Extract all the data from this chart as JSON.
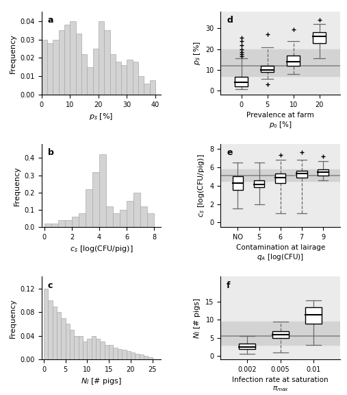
{
  "hist_a": {
    "label": "a",
    "xlabel": "$p_s$ [%]",
    "ylabel": "Frequency",
    "xlim": [
      0,
      42
    ],
    "ylim": [
      0,
      0.045
    ],
    "yticks": [
      0.0,
      0.01,
      0.02,
      0.03,
      0.04
    ],
    "xticks": [
      0,
      10,
      20,
      30,
      40
    ],
    "bar_edges": [
      0,
      2,
      4,
      6,
      8,
      10,
      12,
      14,
      16,
      18,
      20,
      22,
      24,
      26,
      28,
      30,
      32,
      34,
      36,
      38,
      40
    ],
    "bar_heights": [
      0.03,
      0.028,
      0.03,
      0.035,
      0.038,
      0.04,
      0.033,
      0.022,
      0.015,
      0.025,
      0.04,
      0.035,
      0.022,
      0.018,
      0.016,
      0.019,
      0.018,
      0.01,
      0.006,
      0.008
    ],
    "bar_color": "#d3d3d3",
    "bar_edgecolor": "#aaaaaa"
  },
  "hist_b": {
    "label": "b",
    "xlabel": "$c_s$ [log(CFU/pig)]",
    "ylabel": "Frequency",
    "xlim": [
      -0.2,
      8.5
    ],
    "ylim": [
      0,
      0.48
    ],
    "yticks": [
      0.0,
      0.1,
      0.2,
      0.3,
      0.4
    ],
    "xticks": [
      0,
      2,
      4,
      6,
      8
    ],
    "bar_edges": [
      0.0,
      0.5,
      1.0,
      1.5,
      2.0,
      2.5,
      3.0,
      3.5,
      4.0,
      4.5,
      5.0,
      5.5,
      6.0,
      6.5,
      7.0,
      7.5,
      8.0
    ],
    "bar_heights": [
      0.02,
      0.02,
      0.04,
      0.04,
      0.06,
      0.08,
      0.22,
      0.32,
      0.42,
      0.12,
      0.08,
      0.1,
      0.15,
      0.2,
      0.12,
      0.08
    ],
    "bar_color": "#d3d3d3",
    "bar_edgecolor": "#aaaaaa"
  },
  "hist_c": {
    "label": "c",
    "xlabel": "$N_I$ [# pigs]",
    "ylabel": "Frequency",
    "xlim": [
      -0.5,
      27
    ],
    "ylim": [
      0,
      0.14
    ],
    "yticks": [
      0.0,
      0.04,
      0.08,
      0.12
    ],
    "xticks": [
      0,
      5,
      10,
      15,
      20,
      25
    ],
    "bar_edges": [
      0,
      1,
      2,
      3,
      4,
      5,
      6,
      7,
      8,
      9,
      10,
      11,
      12,
      13,
      14,
      15,
      16,
      17,
      18,
      19,
      20,
      21,
      22,
      23,
      24,
      25
    ],
    "bar_heights": [
      0.12,
      0.1,
      0.09,
      0.08,
      0.07,
      0.06,
      0.05,
      0.04,
      0.04,
      0.03,
      0.035,
      0.04,
      0.035,
      0.03,
      0.025,
      0.025,
      0.02,
      0.018,
      0.016,
      0.014,
      0.012,
      0.01,
      0.008,
      0.006,
      0.004
    ],
    "bar_color": "#d3d3d3",
    "bar_edgecolor": "#aaaaaa"
  },
  "box_d": {
    "label": "d",
    "ylabel": "$p_s$ [%]",
    "xlabel": "Prevalence at farm\n$p_0$ [%]",
    "xlabels": [
      "0",
      "5",
      "10",
      "20"
    ],
    "ylim": [
      -2,
      38
    ],
    "yticks": [
      0,
      10,
      20,
      30
    ],
    "boxes": [
      {
        "q1": 2.0,
        "med": 4.0,
        "q3": 6.5,
        "whislo": 0.5,
        "whishi": 15.5,
        "fliers_up": [
          16.5,
          17.5,
          18.5,
          20.0,
          22.0,
          24.0,
          25.5
        ],
        "fliers_down": [],
        "dashed": false
      },
      {
        "q1": 9.0,
        "med": 10.0,
        "q3": 12.0,
        "whislo": 5.5,
        "whishi": 21.0,
        "fliers_up": [
          27.0
        ],
        "fliers_down": [
          3.0
        ],
        "dashed": true
      },
      {
        "q1": 12.0,
        "med": 14.0,
        "q3": 17.0,
        "whislo": 8.0,
        "whishi": 24.0,
        "fliers_up": [
          29.5
        ],
        "fliers_down": [],
        "dashed": true
      },
      {
        "q1": 23.0,
        "med": 26.0,
        "q3": 28.0,
        "whislo": 15.5,
        "whishi": 32.0,
        "fliers_up": [
          34.0
        ],
        "fliers_down": [],
        "dashed": false
      }
    ],
    "ref_band_ymin": 7.0,
    "ref_band_ymax": 20.0,
    "ref_line_y": 12.0
  },
  "box_e": {
    "label": "e",
    "ylabel": "$c_s$ [log(CFU/pig)]",
    "xlabel": "Contamination at lairage\n$q_A$ [log(CFU)]",
    "xlabels": [
      "NO",
      "5",
      "6",
      "7",
      "9"
    ],
    "ylim": [
      -0.5,
      8.5
    ],
    "yticks": [
      0,
      2,
      4,
      6,
      8
    ],
    "boxes": [
      {
        "q1": 3.5,
        "med": 4.3,
        "q3": 5.0,
        "whislo": 1.5,
        "whishi": 6.5,
        "fliers_up": [],
        "fliers_down": [],
        "dashed": false
      },
      {
        "q1": 3.8,
        "med": 4.1,
        "q3": 4.6,
        "whislo": 2.0,
        "whishi": 6.5,
        "fliers_up": [],
        "fliers_down": [],
        "dashed": false
      },
      {
        "q1": 4.3,
        "med": 4.9,
        "q3": 5.3,
        "whislo": 1.0,
        "whishi": 6.8,
        "fliers_up": [
          7.3
        ],
        "fliers_down": [],
        "dashed": true
      },
      {
        "q1": 4.9,
        "med": 5.3,
        "q3": 5.65,
        "whislo": 1.0,
        "whishi": 6.8,
        "fliers_up": [
          7.6
        ],
        "fliers_down": [],
        "dashed": true
      },
      {
        "q1": 5.1,
        "med": 5.45,
        "q3": 5.75,
        "whislo": 4.6,
        "whishi": 6.7,
        "fliers_up": [
          7.2
        ],
        "fliers_down": [],
        "dashed": false
      }
    ],
    "ref_band_ymin": 4.5,
    "ref_band_ymax": 5.8,
    "ref_line_y": 5.1
  },
  "box_f": {
    "label": "f",
    "ylabel": "$N_I$ [# pigs]",
    "xlabel": "Infection rate at saturation\n$\\pi_{max}$",
    "xlabels": [
      "0.002",
      "0.005",
      "0.01"
    ],
    "ylim": [
      -1,
      22
    ],
    "yticks": [
      0,
      5,
      10,
      15
    ],
    "boxes": [
      {
        "q1": 1.8,
        "med": 2.5,
        "q3": 3.5,
        "whislo": 0.5,
        "whishi": 5.5,
        "fliers_up": [],
        "fliers_down": [],
        "dashed": false
      },
      {
        "q1": 5.0,
        "med": 5.8,
        "q3": 6.8,
        "whislo": 1.0,
        "whishi": 9.5,
        "fliers_up": [],
        "fliers_down": [],
        "dashed": true
      },
      {
        "q1": 9.0,
        "med": 11.5,
        "q3": 13.5,
        "whislo": 3.0,
        "whishi": 15.5,
        "fliers_up": [],
        "fliers_down": [],
        "dashed": false
      }
    ],
    "ref_band_ymin": 3.0,
    "ref_band_ymax": 9.5,
    "ref_line_y": 5.5
  },
  "box_bg_color": "#ebebeb",
  "ref_band_color": "#d3d3d3",
  "ref_line_color": "#888888",
  "box_width": 0.5
}
